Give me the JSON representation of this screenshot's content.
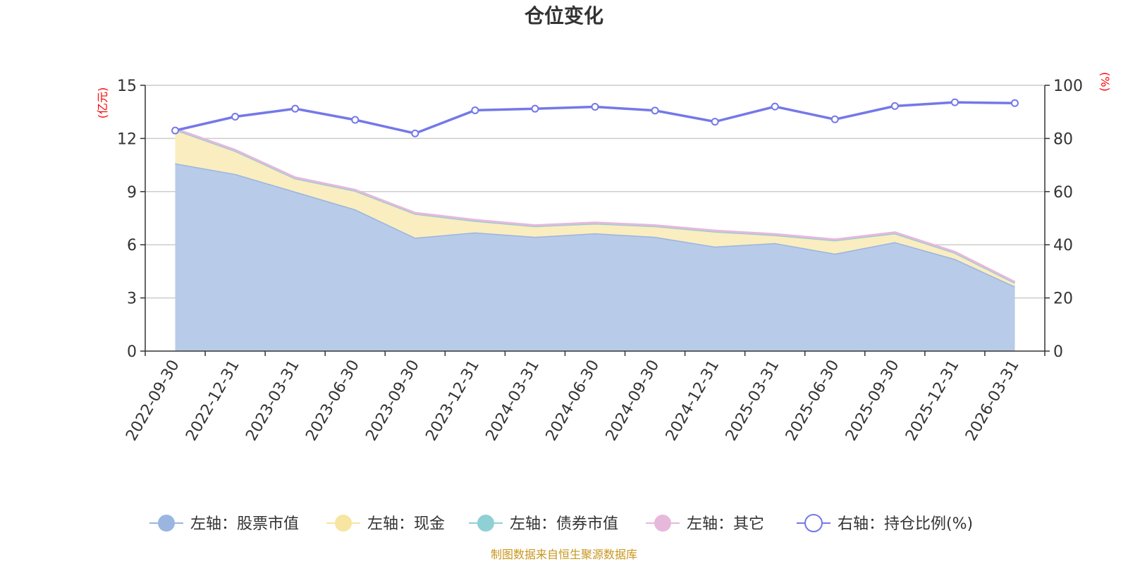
{
  "chart_data": {
    "type": "area",
    "title": "仓位变化",
    "categories": [
      "2022-09-30",
      "2022-12-31",
      "2023-03-31",
      "2023-06-30",
      "2023-09-30",
      "2023-12-31",
      "2024-03-31",
      "2024-06-30",
      "2024-09-30",
      "2024-12-31",
      "2025-03-31",
      "2025-06-30",
      "2025-09-30",
      "2025-12-31",
      "2026-03-31"
    ],
    "left_axis": {
      "unit": "(亿元)",
      "ylim": [
        0,
        15
      ],
      "ticks": [
        "0",
        "3",
        "6",
        "9",
        "12",
        "15"
      ]
    },
    "right_axis": {
      "unit": "(%)",
      "ylim": [
        0,
        100
      ],
      "ticks": [
        "0",
        "20",
        "40",
        "60",
        "80",
        "100"
      ]
    },
    "series": [
      {
        "name": "左轴：股票市值",
        "axis": "left",
        "kind": "area",
        "color": "#9ab5e0",
        "fill": "#b8cbe9",
        "values": [
          10.6,
          10.0,
          9.0,
          8.0,
          6.4,
          6.7,
          6.45,
          6.65,
          6.45,
          5.9,
          6.1,
          5.5,
          6.15,
          5.2,
          3.65
        ]
      },
      {
        "name": "左轴：现金",
        "axis": "left",
        "kind": "area",
        "color": "#f7e5a1",
        "fill": "#faedc0",
        "values": [
          1.9,
          1.3,
          0.75,
          1.05,
          1.35,
          0.65,
          0.6,
          0.55,
          0.6,
          0.85,
          0.45,
          0.75,
          0.5,
          0.35,
          0.2
        ]
      },
      {
        "name": "左轴：债券市值",
        "axis": "left",
        "kind": "area",
        "color": "#8fd0d4",
        "fill": "#b5e1e3",
        "values": [
          0,
          0,
          0,
          0,
          0,
          0,
          0,
          0,
          0,
          0,
          0,
          0,
          0,
          0,
          0
        ]
      },
      {
        "name": "左轴：其它",
        "axis": "left",
        "kind": "area",
        "color": "#e7b8dc",
        "fill": "#f0d2e8",
        "values": [
          0.05,
          0.05,
          0.05,
          0.05,
          0.05,
          0.05,
          0.05,
          0.05,
          0.05,
          0.05,
          0.05,
          0.05,
          0.05,
          0.05,
          0.05
        ]
      },
      {
        "name": "右轴：持仓比例(%)",
        "axis": "right",
        "kind": "line",
        "color": "#7478e8",
        "values": [
          83.0,
          88.2,
          91.2,
          87.0,
          81.9,
          90.6,
          91.2,
          91.9,
          90.5,
          86.3,
          92.0,
          87.2,
          92.2,
          93.6,
          93.3
        ]
      }
    ],
    "legend_position": "bottom",
    "grid": true
  },
  "footer": {
    "source": "制图数据来自恒生聚源数据库"
  }
}
